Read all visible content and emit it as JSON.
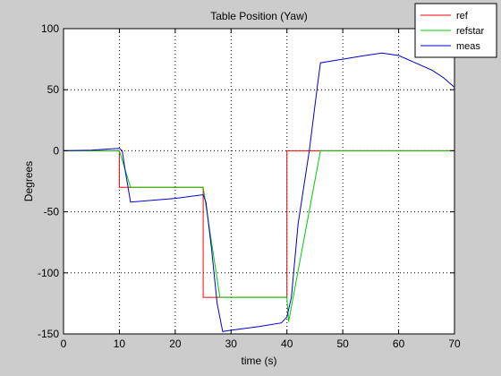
{
  "chart_data": {
    "type": "line",
    "title": "Table Position (Yaw)",
    "xlabel": "time (s)",
    "ylabel": "Degrees",
    "xlim": [
      0,
      70
    ],
    "ylim": [
      -150,
      100
    ],
    "xticks": [
      0,
      10,
      20,
      30,
      40,
      50,
      60,
      70
    ],
    "yticks": [
      -150,
      -100,
      -50,
      0,
      50,
      100
    ],
    "grid": true,
    "grid_style": "dotted",
    "legend_position": "top-right",
    "series": [
      {
        "name": "ref",
        "color": "#ff0000",
        "x": [
          0,
          10,
          10,
          25,
          25,
          40,
          40,
          70
        ],
        "y": [
          0,
          0,
          -30,
          -30,
          -120,
          -120,
          0,
          0
        ]
      },
      {
        "name": "refstar",
        "color": "#00cc00",
        "x": [
          0,
          10,
          12,
          25,
          28,
          40,
          40.3,
          46,
          70
        ],
        "y": [
          0,
          0,
          -30,
          -30,
          -120,
          -120,
          -140,
          0,
          0
        ]
      },
      {
        "name": "meas",
        "color": "#0000cc",
        "x": [
          0,
          5,
          10,
          10.5,
          11,
          12,
          20,
          25,
          25.5,
          26.5,
          27.5,
          28.5,
          30,
          35,
          39,
          40,
          40.8,
          42,
          44,
          45.5,
          46,
          50,
          54,
          57,
          60,
          63,
          66,
          68,
          70
        ],
        "y": [
          0,
          0.5,
          2,
          0,
          -15,
          -42,
          -39,
          -36,
          -42,
          -80,
          -125,
          -148,
          -147,
          -144,
          -141,
          -136,
          -120,
          -60,
          0,
          55,
          72,
          75,
          78,
          80,
          78,
          72,
          66,
          60,
          52
        ]
      }
    ]
  }
}
